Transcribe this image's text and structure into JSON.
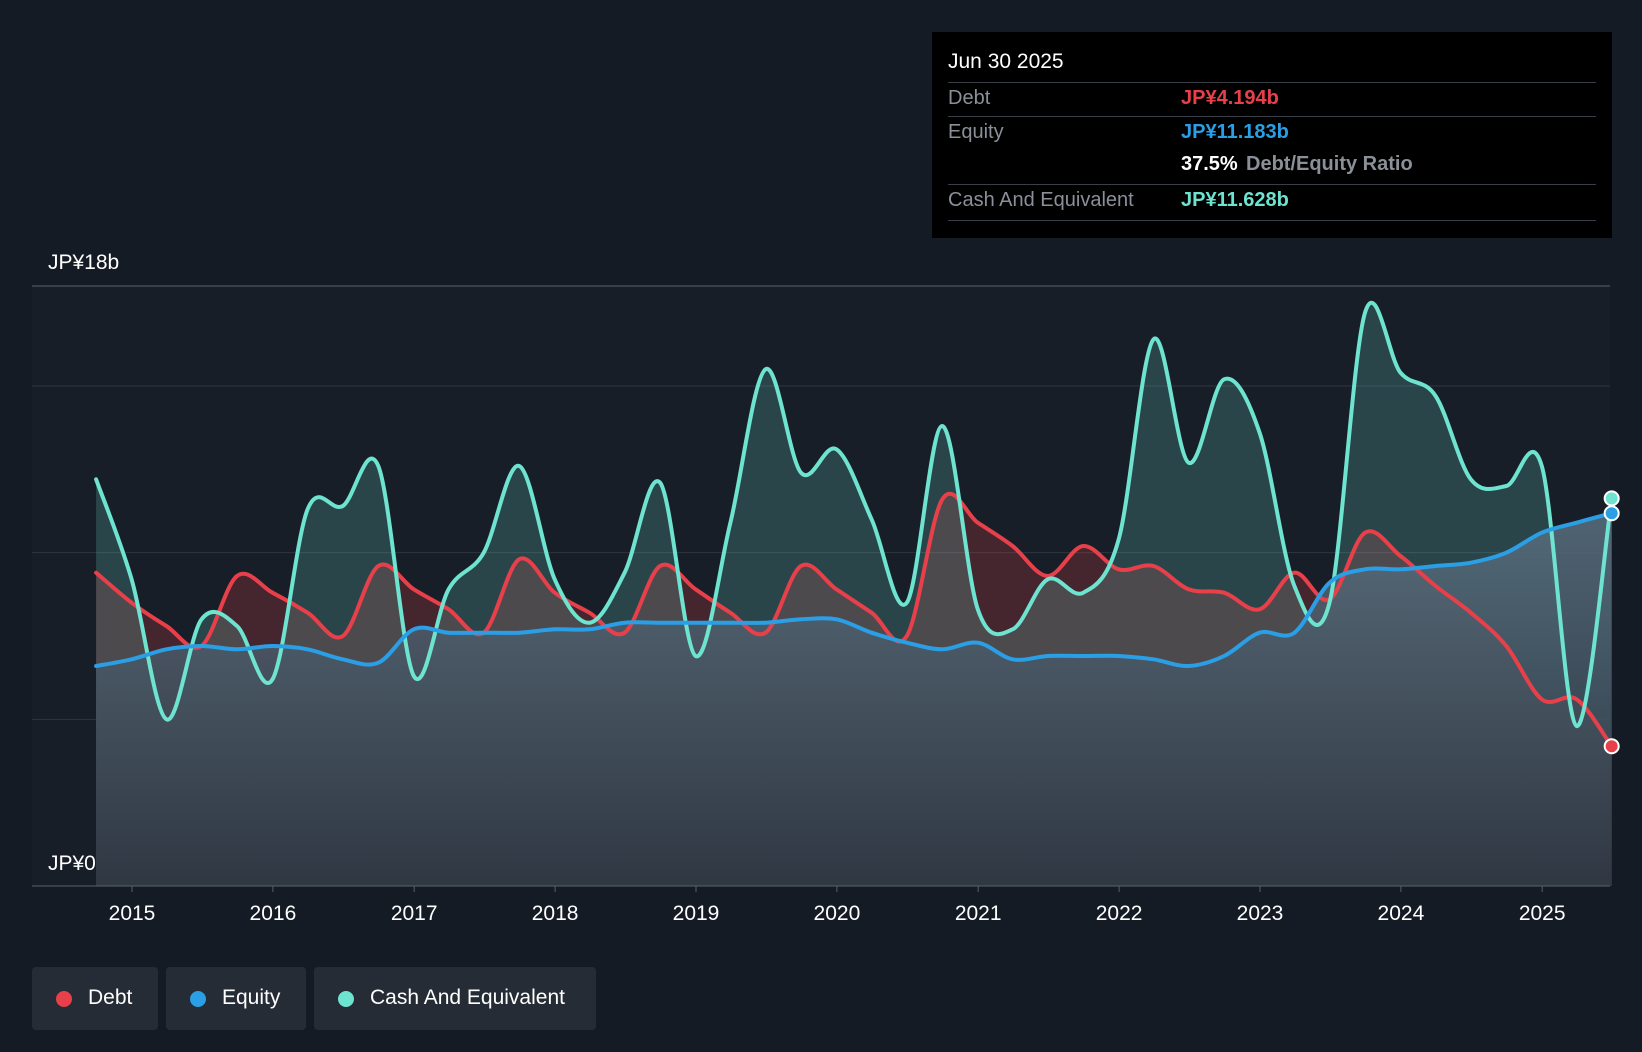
{
  "tooltip": {
    "date": "Jun 30 2025",
    "debt_label": "Debt",
    "debt_value": "JP¥4.194b",
    "equity_label": "Equity",
    "equity_value": "JP¥11.183b",
    "ratio_pct": "37.5%",
    "ratio_label": "Debt/Equity Ratio",
    "cash_label": "Cash And Equivalent",
    "cash_value": "JP¥11.628b"
  },
  "legend": {
    "debt": "Debt",
    "equity": "Equity",
    "cash": "Cash And Equivalent"
  },
  "colors": {
    "debt": "#e8404a",
    "equity": "#2a9fe6",
    "cash": "#6de3d0",
    "background": "#151b24"
  },
  "chart_data": {
    "type": "area",
    "y_unit": "JP¥ billions",
    "ylim": [
      0,
      18
    ],
    "y_tick_labels": [
      {
        "value": 18,
        "label": "JP¥18b"
      },
      {
        "value": 0,
        "label": "JP¥0"
      }
    ],
    "x_ticks": [
      "2015",
      "2016",
      "2017",
      "2018",
      "2019",
      "2020",
      "2021",
      "2022",
      "2023",
      "2024",
      "2025"
    ],
    "grid": true,
    "x": [
      "2014-09-30",
      "2014-12-31",
      "2015-03-31",
      "2015-06-30",
      "2015-09-30",
      "2015-12-31",
      "2016-03-31",
      "2016-06-30",
      "2016-09-30",
      "2016-12-31",
      "2017-03-31",
      "2017-06-30",
      "2017-09-30",
      "2017-12-31",
      "2018-03-31",
      "2018-06-30",
      "2018-09-30",
      "2018-12-31",
      "2019-03-31",
      "2019-06-30",
      "2019-09-30",
      "2019-12-31",
      "2020-03-31",
      "2020-06-30",
      "2020-09-30",
      "2020-12-31",
      "2021-03-31",
      "2021-06-30",
      "2021-09-30",
      "2021-12-31",
      "2022-03-31",
      "2022-06-30",
      "2022-09-30",
      "2022-12-31",
      "2023-03-31",
      "2023-06-30",
      "2023-09-30",
      "2023-12-31",
      "2024-03-31",
      "2024-06-30",
      "2024-09-30",
      "2024-12-31",
      "2025-03-31",
      "2025-06-30"
    ],
    "series": [
      {
        "name": "Debt",
        "values": [
          9.4,
          8.5,
          7.8,
          7.2,
          9.3,
          8.8,
          8.2,
          7.5,
          9.6,
          8.9,
          8.3,
          7.6,
          9.8,
          8.8,
          8.2,
          7.6,
          9.6,
          8.9,
          8.2,
          7.6,
          9.6,
          8.9,
          8.2,
          7.5,
          11.6,
          10.9,
          10.2,
          9.3,
          10.2,
          9.5,
          9.6,
          8.9,
          8.8,
          8.3,
          9.4,
          8.6,
          10.6,
          9.9,
          9.0,
          8.2,
          7.2,
          5.6,
          5.6,
          4.194
        ]
      },
      {
        "name": "Equity",
        "values": [
          6.6,
          6.8,
          7.1,
          7.2,
          7.1,
          7.2,
          7.1,
          6.8,
          6.7,
          7.7,
          7.6,
          7.6,
          7.6,
          7.7,
          7.7,
          7.9,
          7.9,
          7.9,
          7.9,
          7.9,
          8.0,
          8.0,
          7.6,
          7.3,
          7.1,
          7.3,
          6.8,
          6.9,
          6.9,
          6.9,
          6.8,
          6.6,
          6.9,
          7.6,
          7.6,
          9.1,
          9.5,
          9.5,
          9.6,
          9.7,
          10.0,
          10.6,
          10.9,
          11.183
        ]
      },
      {
        "name": "Cash And Equivalent",
        "values": [
          12.2,
          9.2,
          5.0,
          8.0,
          7.8,
          6.2,
          11.3,
          11.4,
          12.6,
          6.3,
          8.9,
          10.0,
          12.6,
          9.2,
          7.9,
          9.4,
          12.1,
          6.9,
          10.9,
          15.5,
          12.4,
          13.1,
          11.0,
          8.5,
          13.8,
          8.3,
          7.7,
          9.2,
          8.8,
          10.4,
          16.4,
          12.7,
          15.2,
          13.6,
          9.0,
          8.5,
          17.2,
          15.4,
          14.7,
          12.2,
          12.0,
          12.6,
          4.8,
          11.628
        ]
      }
    ]
  }
}
